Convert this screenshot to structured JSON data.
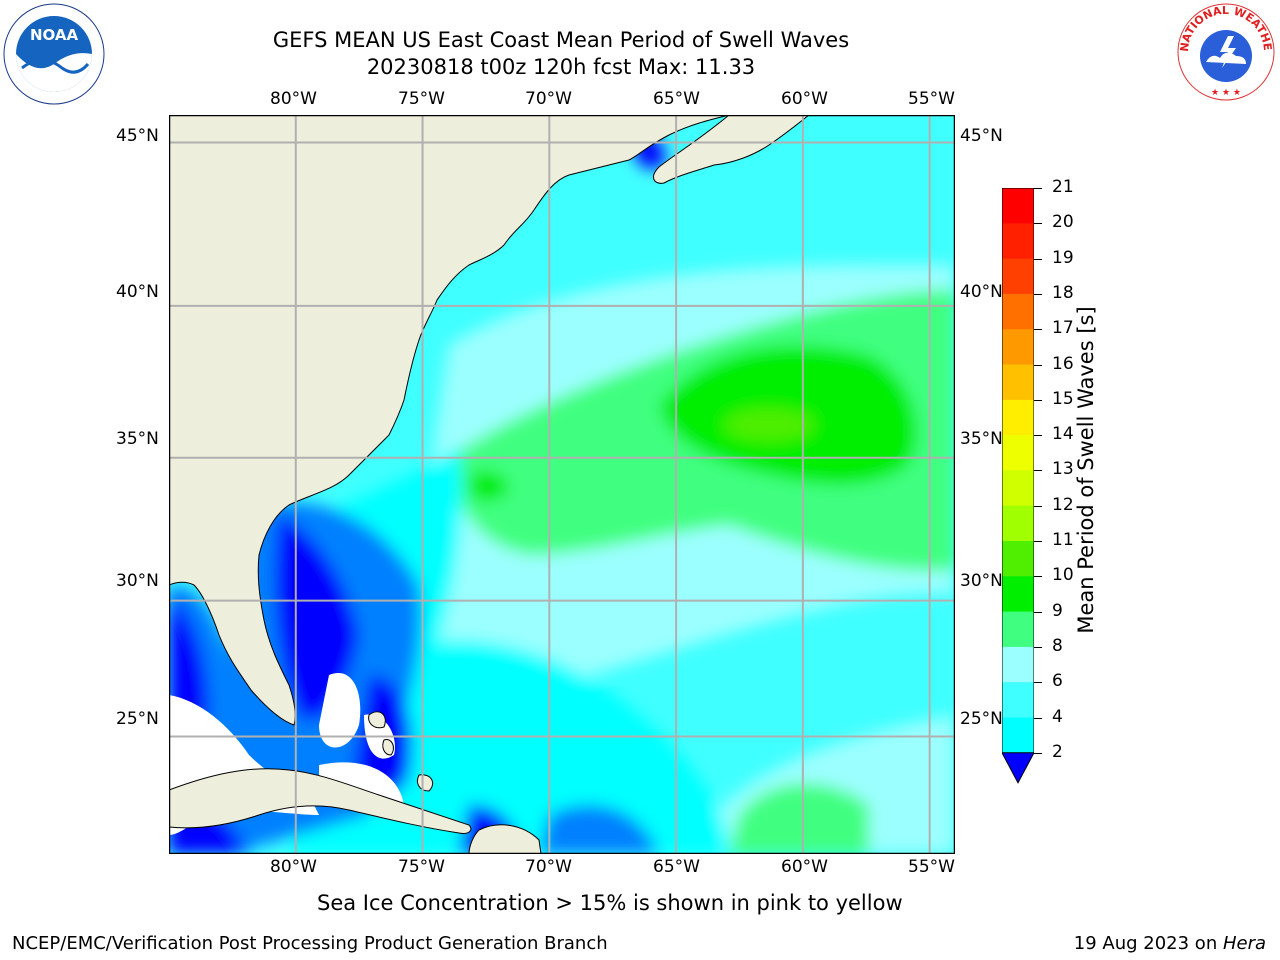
{
  "title": {
    "line1": "GEFS MEAN US East Coast Mean Period of Swell Waves",
    "line2": "20230818 t00z 120h fcst   Max: 11.33"
  },
  "logos": {
    "left": {
      "name": "noaa-logo",
      "text": "NOAA"
    },
    "right": {
      "name": "nws-logo",
      "ring_text": "NATIONAL WEATHER SERVICE"
    }
  },
  "map": {
    "lon_labels": [
      "80°W",
      "75°W",
      "70°W",
      "65°W",
      "60°W",
      "55°W"
    ],
    "lat_labels": [
      "45°N",
      "40°N",
      "35°N",
      "30°N",
      "25°N"
    ],
    "lon_range": [
      -85,
      -54
    ],
    "lat_range": [
      20.5,
      45.8
    ],
    "colors": {
      "land": "#eeeedc",
      "grid": "#b0b0b0",
      "no_data": "#ffffff"
    }
  },
  "colorbar": {
    "label": "Mean Period of Swell Waves [s]",
    "ticks": [
      "2",
      "4",
      "6",
      "8",
      "9",
      "10",
      "11",
      "12",
      "13",
      "14",
      "15",
      "16",
      "17",
      "18",
      "19",
      "20",
      "21"
    ],
    "colors": [
      "#0000ff",
      "#0080ff",
      "#00ffff",
      "#40ffff",
      "#9cffff",
      "#40ff80",
      "#00ee00",
      "#50ee00",
      "#a0ff00",
      "#d0ff00",
      "#eeff00",
      "#ffee00",
      "#ffc000",
      "#ff9900",
      "#ff7000",
      "#ff4000",
      "#ff2000",
      "#ff0000"
    ]
  },
  "note": "Sea Ice Concentration > 15% is shown in pink to yellow",
  "footer": {
    "left": "NCEP/EMC/Verification Post Processing Product Generation Branch",
    "right_date": "19 Aug 2023 on ",
    "right_host": "Hera"
  }
}
